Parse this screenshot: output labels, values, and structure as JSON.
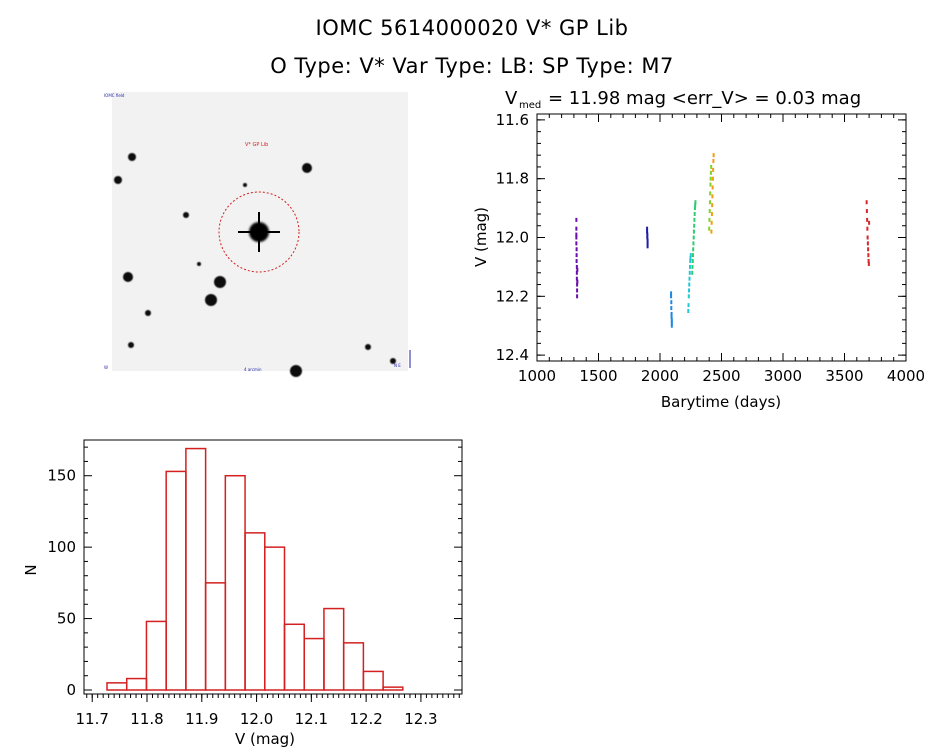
{
  "header": {
    "title_line1": "IOMC 5614000020    V* GP Lib",
    "title_line2": "O Type: V*  Var Type: LB:  SP Type: M7"
  },
  "finder": {
    "label": "V* GP Lib",
    "top_left_text": "IOMC field",
    "bottom_left_text": "W",
    "bottom_center_text": "4 arcmin",
    "compass_text": "N E"
  },
  "chart_data": [
    {
      "type": "scatter",
      "title_main": "V",
      "title_sub": "med",
      "title_rest": "= 11.98 mag <err_V> = 0.03 mag",
      "xlabel": "Barytime (days)",
      "ylabel": "V (mag)",
      "xlim": [
        1000,
        4000
      ],
      "ylim": [
        12.42,
        11.58
      ],
      "y_inverted": true,
      "xticks": [
        1000,
        1500,
        2000,
        2500,
        3000,
        3500,
        4000
      ],
      "xticklabels": [
        "1000",
        "1500",
        "2000",
        "2500",
        "3000",
        "3500",
        "4000"
      ],
      "yticks": [
        11.6,
        11.8,
        12.0,
        12.2,
        12.4
      ],
      "yticklabels": [
        "11.6",
        "11.8",
        "12.0",
        "12.2",
        "12.4"
      ],
      "series": [
        {
          "color": "#6a0dad",
          "x": [
            1320,
            1320,
            1320,
            1322,
            1322,
            1322,
            1324,
            1324,
            1324,
            1326,
            1326,
            1326,
            1328,
            1328,
            1320,
            1320
          ],
          "y": [
            11.94,
            11.97,
            12.02,
            12.04,
            12.06,
            12.08,
            12.1,
            12.12,
            12.14,
            12.16,
            12.18,
            12.2,
            12.15,
            12.11,
            12.0,
            11.99
          ]
        },
        {
          "color": "#1f1fa8",
          "x": [
            1895,
            1895,
            1897,
            1897,
            1899,
            1899,
            1899
          ],
          "y": [
            11.97,
            11.98,
            11.99,
            12.0,
            12.01,
            12.02,
            12.03
          ]
        },
        {
          "color": "#1e88e5",
          "x": [
            2090,
            2090,
            2092,
            2092,
            2094,
            2094,
            2096,
            2096,
            2096
          ],
          "y": [
            12.19,
            12.2,
            12.22,
            12.24,
            12.26,
            12.27,
            12.28,
            12.29,
            12.3
          ]
        },
        {
          "color": "#22c7d9",
          "x": [
            2230,
            2232,
            2234,
            2236,
            2238,
            2240,
            2242,
            2244,
            2246,
            2248,
            2250
          ],
          "y": [
            12.25,
            12.23,
            12.2,
            12.18,
            12.16,
            12.14,
            12.12,
            12.1,
            12.08,
            12.07,
            12.06
          ]
        },
        {
          "color": "#2ecc71",
          "x": [
            2262,
            2264,
            2266,
            2268,
            2270,
            2272,
            2274,
            2276,
            2278,
            2280,
            2282,
            2284,
            2286,
            2288
          ],
          "y": [
            12.12,
            12.1,
            12.08,
            12.06,
            12.04,
            12.02,
            12.0,
            11.98,
            11.96,
            11.94,
            11.92,
            11.9,
            11.89,
            11.88
          ]
        },
        {
          "color": "#7fd321",
          "x": [
            2400,
            2402,
            2404,
            2406,
            2408,
            2410,
            2412,
            2414,
            2416
          ],
          "y": [
            11.97,
            11.94,
            11.91,
            11.88,
            11.85,
            11.82,
            11.8,
            11.78,
            11.76
          ]
        },
        {
          "color": "#f39c12",
          "x": [
            2418,
            2420,
            2422,
            2424,
            2426,
            2428,
            2430,
            2432,
            2434,
            2436
          ],
          "y": [
            11.98,
            11.95,
            11.92,
            11.89,
            11.86,
            11.83,
            11.8,
            11.77,
            11.74,
            11.72
          ]
        },
        {
          "color": "#d62728",
          "x": [
            3680,
            3682,
            3684,
            3686,
            3688,
            3690,
            3692,
            3694,
            3696,
            3698,
            3700
          ],
          "y": [
            11.88,
            11.91,
            11.94,
            11.97,
            12.0,
            12.02,
            12.04,
            12.06,
            12.08,
            12.09,
            11.95
          ]
        }
      ]
    },
    {
      "type": "bar",
      "subtype": "histogram",
      "xlabel": "V (mag)",
      "ylabel": "N",
      "xlim": [
        11.685,
        12.375
      ],
      "ylim": [
        0,
        175
      ],
      "bin_width": 0.036,
      "bin_starts": [
        11.727,
        11.763,
        11.799,
        11.835,
        11.871,
        11.907,
        11.943,
        11.979,
        12.015,
        12.051,
        12.087,
        12.123,
        12.159,
        12.195,
        12.231,
        12.267,
        12.303
      ],
      "values": [
        5,
        8,
        48,
        153,
        169,
        75,
        150,
        110,
        100,
        46,
        36,
        57,
        33,
        13,
        2,
        0,
        0
      ],
      "xticks": [
        11.7,
        11.8,
        11.9,
        12.0,
        12.1,
        12.2,
        12.3
      ],
      "xticklabels": [
        "11.7",
        "11.8",
        "11.9",
        "12.0",
        "12.1",
        "12.2",
        "12.3"
      ],
      "yticks": [
        0,
        50,
        100,
        150
      ],
      "yticklabels": [
        "0",
        "50",
        "100",
        "150"
      ],
      "bar_color": "#d42020"
    }
  ]
}
